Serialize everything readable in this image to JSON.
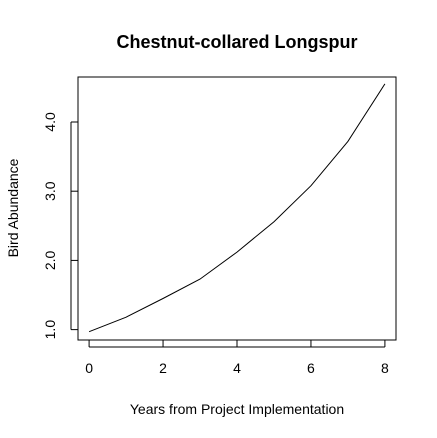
{
  "chart_data": {
    "type": "line",
    "title": "Chestnut-collared Longspur",
    "xlabel": "Years from Project Implementation",
    "ylabel": "Bird Abundance",
    "xlim": [
      -0.3,
      8.3
    ],
    "ylim": [
      0.85,
      4.65
    ],
    "x_ticks": [
      0,
      2,
      4,
      6,
      8
    ],
    "x_tick_labels": [
      "0",
      "2",
      "4",
      "6",
      "8"
    ],
    "y_ticks": [
      1.0,
      2.0,
      3.0,
      4.0
    ],
    "y_tick_labels": [
      "1.0",
      "2.0",
      "3.0",
      "4.0"
    ],
    "grid": false,
    "series": [
      {
        "color": "#000000",
        "x": [
          0,
          1,
          2,
          3,
          4,
          5,
          6,
          7,
          8
        ],
        "y": [
          0.97,
          1.18,
          1.45,
          1.73,
          2.12,
          2.56,
          3.08,
          3.72,
          4.55
        ]
      }
    ]
  }
}
